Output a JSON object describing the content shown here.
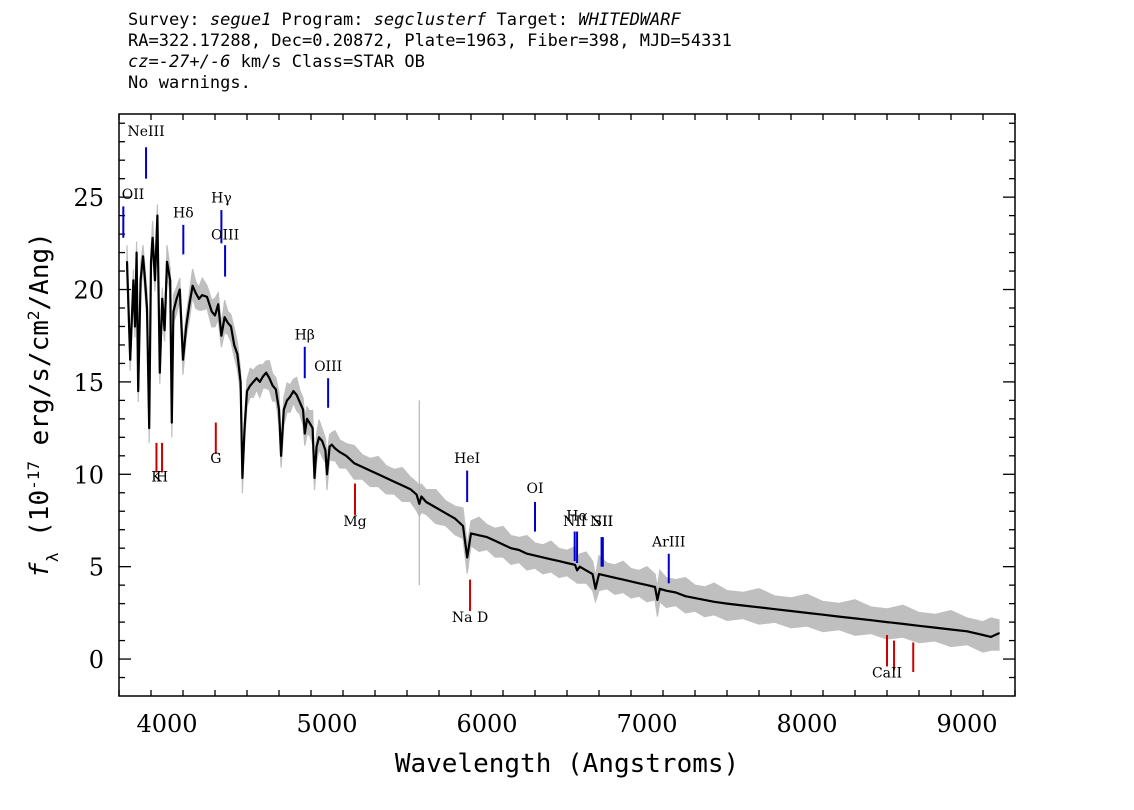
{
  "header": {
    "line1": {
      "survey_label": "Survey: ",
      "survey": "segue1",
      "program_label": " Program: ",
      "program": "segclusterf",
      "target_label": " Target: ",
      "target": "WHITEDWARF"
    },
    "line2": "RA=322.17288, Dec=0.20872, Plate=1963, Fiber=398, MJD=54331",
    "line3": {
      "cz": "cz=-27+/-6",
      "rest": " km/s Class=STAR OB"
    },
    "line4": "No warnings."
  },
  "chart_data": {
    "type": "line",
    "xlabel": "Wavelength (Angstroms)",
    "ylabel": "f_λ (10^-17 erg/s/cm^2/Ang)",
    "xlim": [
      3700,
      9300
    ],
    "ylim": [
      -2,
      29.5
    ],
    "x_ticks": [
      4000,
      5000,
      6000,
      7000,
      8000,
      9000
    ],
    "y_ticks": [
      0,
      5,
      10,
      15,
      20,
      25
    ],
    "colors": {
      "flux": "#000000",
      "error": "#b4b4b4",
      "emission": "#0000cc",
      "absorption": "#cc0000"
    },
    "series": [
      {
        "values_x": [
          3750,
          3770,
          3790,
          3800,
          3810,
          3820,
          3835,
          3850,
          3860,
          3875,
          3889,
          3900,
          3910,
          3925,
          3940,
          3955,
          3970,
          3985,
          4000,
          4020,
          4030,
          4040,
          4060,
          4080,
          4100,
          4120,
          4140,
          4160,
          4180,
          4200,
          4220,
          4250,
          4280,
          4300,
          4320,
          4340,
          4360,
          4380,
          4400,
          4420,
          4440,
          4460,
          4471,
          4485,
          4500,
          4520,
          4540,
          4560,
          4580,
          4600,
          4620,
          4640,
          4660,
          4680,
          4700,
          4713,
          4730,
          4750,
          4770,
          4790,
          4810,
          4830,
          4850,
          4861,
          4875,
          4890,
          4910,
          4922,
          4935,
          4950,
          4970,
          4990,
          5000,
          5016,
          5030,
          5050,
          5080,
          5120,
          5170,
          5220,
          5270,
          5320,
          5370,
          5420,
          5470,
          5520,
          5560,
          5577,
          5590,
          5620,
          5680,
          5740,
          5800,
          5850,
          5876,
          5900,
          5950,
          6000,
          6050,
          6100,
          6150,
          6200,
          6250,
          6300,
          6350,
          6400,
          6450,
          6500,
          6550,
          6563,
          6580,
          6620,
          6660,
          6678,
          6700,
          6750,
          6800,
          6850,
          6900,
          6950,
          7000,
          7050,
          7065,
          7080,
          7120,
          7180,
          7240,
          7300,
          7360,
          7420,
          7500,
          7600,
          7700,
          7800,
          7900,
          8000,
          8100,
          8200,
          8300,
          8400,
          8500,
          8600,
          8700,
          8800,
          8900,
          9000,
          9100,
          9150,
          9200
        ],
        "values_y": [
          21.5,
          16.2,
          20.5,
          18.0,
          22.0,
          14.5,
          20.5,
          21.8,
          20.8,
          19.0,
          12.5,
          21.5,
          22.8,
          20.5,
          24.0,
          15.5,
          19.5,
          17.8,
          21.5,
          20.5,
          12.8,
          18.8,
          19.5,
          20.0,
          16.2,
          18.0,
          19.2,
          20.2,
          19.8,
          19.5,
          19.7,
          19.6,
          18.8,
          18.6,
          19.2,
          17.5,
          18.5,
          18.2,
          18.0,
          17.0,
          16.5,
          15.0,
          9.8,
          12.5,
          14.5,
          14.8,
          15.0,
          15.2,
          15.0,
          15.3,
          15.5,
          15.2,
          14.8,
          14.6,
          13.5,
          11.0,
          13.5,
          14.0,
          14.2,
          14.5,
          14.3,
          13.9,
          13.5,
          12.2,
          13.0,
          12.8,
          12.5,
          9.8,
          11.5,
          12.0,
          11.8,
          11.3,
          10.0,
          11.5,
          11.6,
          11.4,
          11.2,
          11.0,
          10.6,
          10.4,
          10.2,
          10.0,
          9.8,
          9.6,
          9.4,
          9.2,
          8.9,
          8.4,
          8.8,
          8.5,
          8.2,
          7.9,
          7.6,
          7.2,
          5.5,
          6.8,
          6.7,
          6.6,
          6.4,
          6.2,
          6.0,
          5.9,
          5.7,
          5.6,
          5.5,
          5.4,
          5.3,
          5.2,
          5.1,
          4.8,
          5.0,
          4.8,
          4.6,
          3.8,
          4.6,
          4.5,
          4.4,
          4.3,
          4.2,
          4.1,
          4.0,
          3.9,
          3.2,
          3.8,
          3.7,
          3.6,
          3.4,
          3.3,
          3.2,
          3.1,
          3.0,
          2.9,
          2.8,
          2.7,
          2.6,
          2.5,
          2.4,
          2.3,
          2.2,
          2.1,
          2.0,
          1.9,
          1.8,
          1.7,
          1.6,
          1.5,
          1.3,
          1.2,
          1.4
        ]
      }
    ],
    "lines": [
      {
        "label": "NeIII",
        "x": 3869,
        "y1": 26.0,
        "y2": 27.7,
        "kind": "emission",
        "label_y": 28.3
      },
      {
        "label": "OII",
        "x": 3727,
        "y1": 22.8,
        "y2": 24.5,
        "kind": "emission",
        "label_y": 24.9
      },
      {
        "label": "Hδ",
        "x": 4102,
        "y1": 21.9,
        "y2": 23.5,
        "kind": "emission",
        "label_y": 23.9
      },
      {
        "label": "Hγ",
        "x": 4340,
        "y1": 22.5,
        "y2": 24.3,
        "kind": "emission",
        "label_y": 24.7
      },
      {
        "label": "OIII",
        "x": 4363,
        "y1": 20.7,
        "y2": 22.4,
        "kind": "emission",
        "label_y": 22.7
      },
      {
        "label": "Hβ",
        "x": 4861,
        "y1": 15.2,
        "y2": 16.9,
        "kind": "emission",
        "label_y": 17.3
      },
      {
        "label": "OIII",
        "x": 5007,
        "y1": 13.6,
        "y2": 15.2,
        "kind": "emission",
        "label_y": 15.6
      },
      {
        "label": "HeI",
        "x": 5876,
        "y1": 8.5,
        "y2": 10.2,
        "kind": "emission",
        "label_y": 10.6
      },
      {
        "label": "OI",
        "x": 6300,
        "y1": 6.9,
        "y2": 8.5,
        "kind": "emission",
        "label_y": 9.0
      },
      {
        "label": "Hα",
        "x": 6563,
        "y1": 5.2,
        "y2": 6.9,
        "kind": "emission",
        "label_y": 7.5
      },
      {
        "label": "NII",
        "x": 6548,
        "y1": 5.3,
        "y2": 6.9,
        "kind": "emission",
        "label_y": 7.2
      },
      {
        "label": "SII",
        "x": 6724,
        "y1": 5.0,
        "y2": 6.6,
        "kind": "emission",
        "label_y": 7.2
      },
      {
        "label": "NII",
        "x": 6716,
        "y1": 5.0,
        "y2": 6.6,
        "kind": "emission",
        "label_y": 7.2
      },
      {
        "label": "ArIII",
        "x": 7136,
        "y1": 4.1,
        "y2": 5.7,
        "kind": "emission",
        "label_y": 6.1
      },
      {
        "label": "K",
        "x": 3934,
        "y1": 10.1,
        "y2": 11.7,
        "kind": "absorption",
        "label_y": 9.6
      },
      {
        "label": "H",
        "x": 3969,
        "y1": 10.1,
        "y2": 11.7,
        "kind": "absorption",
        "label_y": 9.6
      },
      {
        "label": "G",
        "x": 4305,
        "y1": 11.1,
        "y2": 12.8,
        "kind": "absorption",
        "label_y": 10.6
      },
      {
        "label": "Mg",
        "x": 5175,
        "y1": 7.8,
        "y2": 9.5,
        "kind": "absorption",
        "label_y": 7.2
      },
      {
        "label": "Na D",
        "x": 5894,
        "y1": 2.6,
        "y2": 4.3,
        "kind": "absorption",
        "label_y": 2.0
      },
      {
        "label": "CaII",
        "x": 8500,
        "y1": -0.4,
        "y2": 1.3,
        "kind": "absorption",
        "label_y": -1.0
      },
      {
        "label": "",
        "x": 8544,
        "y1": -0.6,
        "y2": 1.0,
        "kind": "absorption",
        "label_y": -1.0
      },
      {
        "label": "",
        "x": 8664,
        "y1": -0.7,
        "y2": 0.9,
        "kind": "absorption",
        "label_y": -1.0
      }
    ]
  }
}
